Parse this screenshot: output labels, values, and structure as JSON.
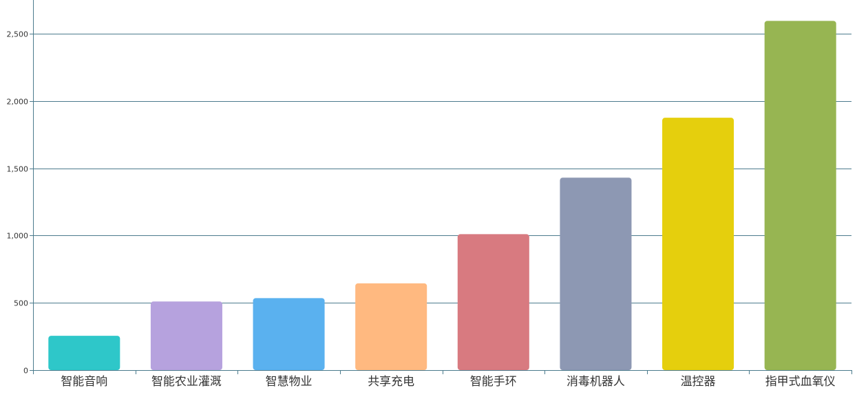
{
  "chart_data": {
    "type": "bar",
    "title": "",
    "xlabel": "",
    "ylabel": "",
    "categories": [
      "智能音响",
      "智能农业灌溉",
      "智慧物业",
      "共享充电",
      "智能手环",
      "消毒机器人",
      "温控器",
      "指甲式血氧仪"
    ],
    "values": [
      255,
      510,
      535,
      645,
      1010,
      1430,
      1875,
      2595
    ],
    "ylim": [
      0,
      2750
    ],
    "yticks": [
      0,
      500,
      1000,
      1500,
      2000,
      2500
    ],
    "ytick_labels": [
      "0",
      "500",
      "1,000",
      "1,500",
      "2,000",
      "2,500"
    ],
    "grid": true,
    "colors": [
      "#2ec7c9",
      "#b6a2de",
      "#5ab1ef",
      "#ffb980",
      "#d87a80",
      "#8d98b3",
      "#e5cf0d",
      "#97b552"
    ],
    "axis_color": "#4a7a8c",
    "grid_color": "#4a7a8c"
  }
}
